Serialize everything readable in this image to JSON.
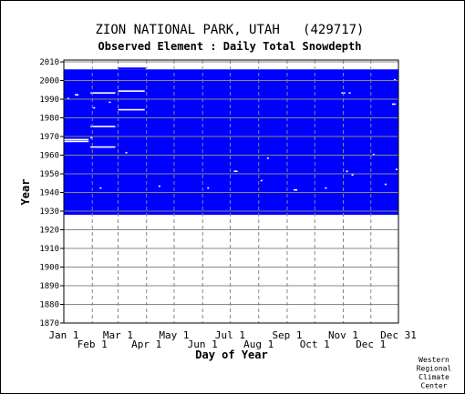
{
  "chart_data": {
    "type": "heatmap",
    "title": "ZION NATIONAL PARK, UTAH   (429717)",
    "subtitle": "Observed Element : Daily Total Snowdepth",
    "xlabel": "Day of Year",
    "ylabel": "Year",
    "xlim": [
      1,
      365
    ],
    "ylim": [
      1870,
      2011
    ],
    "x_ticks_top_row": [
      {
        "label": "Jan 1",
        "day": 1
      },
      {
        "label": "Mar 1",
        "day": 60
      },
      {
        "label": "May 1",
        "day": 121
      },
      {
        "label": "Jul 1",
        "day": 182
      },
      {
        "label": "Sep 1",
        "day": 244
      },
      {
        "label": "Nov 1",
        "day": 305
      },
      {
        "label": "Dec 31",
        "day": 365
      }
    ],
    "x_ticks_bottom_row": [
      {
        "label": "Feb 1",
        "day": 32
      },
      {
        "label": "Apr 1",
        "day": 91
      },
      {
        "label": "Jun 1",
        "day": 152
      },
      {
        "label": "Aug 1",
        "day": 213
      },
      {
        "label": "Oct 1",
        "day": 274
      },
      {
        "label": "Dec 1",
        "day": 335
      }
    ],
    "y_ticks": [
      "1870",
      "1880",
      "1890",
      "1900",
      "1910",
      "1920",
      "1930",
      "1940",
      "1950",
      "1960",
      "1970",
      "1980",
      "1990",
      "2000",
      "2010"
    ],
    "grid": true,
    "data_color": "#0000ff",
    "data_coverage": {
      "record_start_year": 1928,
      "record_end_year": 2005,
      "partial_year": 2006,
      "partial_year_days": [
        60,
        90
      ]
    },
    "missing_segments": [
      {
        "year": 1968,
        "day_start": 1,
        "day_end": 28
      },
      {
        "year": 1967,
        "day_start": 1,
        "day_end": 28
      },
      {
        "year": 1964,
        "day_start": 30,
        "day_end": 57
      },
      {
        "year": 1975,
        "day_start": 30,
        "day_end": 57
      },
      {
        "year": 1993,
        "day_start": 30,
        "day_end": 57
      },
      {
        "year": 1994,
        "day_start": 60,
        "day_end": 89
      },
      {
        "year": 1984,
        "day_start": 60,
        "day_end": 89
      },
      {
        "year": 1992,
        "day_start": 13,
        "day_end": 17
      },
      {
        "year": 1969,
        "day_start": 30,
        "day_end": 32
      },
      {
        "year": 1942,
        "day_start": 40,
        "day_end": 42
      },
      {
        "year": 1961,
        "day_start": 68,
        "day_end": 70
      },
      {
        "year": 1943,
        "day_start": 104,
        "day_end": 106
      },
      {
        "year": 1942,
        "day_start": 157,
        "day_end": 159
      },
      {
        "year": 1951,
        "day_start": 186,
        "day_end": 190
      },
      {
        "year": 1946,
        "day_start": 215,
        "day_end": 217
      },
      {
        "year": 1958,
        "day_start": 222,
        "day_end": 224
      },
      {
        "year": 1941,
        "day_start": 251,
        "day_end": 255
      },
      {
        "year": 1942,
        "day_start": 285,
        "day_end": 287
      },
      {
        "year": 1993,
        "day_start": 303,
        "day_end": 307
      },
      {
        "year": 1993,
        "day_start": 311,
        "day_end": 313
      },
      {
        "year": 1951,
        "day_start": 308,
        "day_end": 310
      },
      {
        "year": 1949,
        "day_start": 314,
        "day_end": 316
      },
      {
        "year": 1960,
        "day_start": 337,
        "day_end": 339
      },
      {
        "year": 1987,
        "day_start": 358,
        "day_end": 362
      },
      {
        "year": 2000,
        "day_start": 360,
        "day_end": 362
      },
      {
        "year": 1990,
        "day_start": 5,
        "day_end": 7
      },
      {
        "year": 1988,
        "day_start": 50,
        "day_end": 52
      },
      {
        "year": 1985,
        "day_start": 33,
        "day_end": 35
      },
      {
        "year": 1952,
        "day_start": 362,
        "day_end": 364
      },
      {
        "year": 1944,
        "day_start": 350,
        "day_end": 352
      }
    ],
    "corner_note": "Western\nRegional\nClimate\nCenter"
  }
}
